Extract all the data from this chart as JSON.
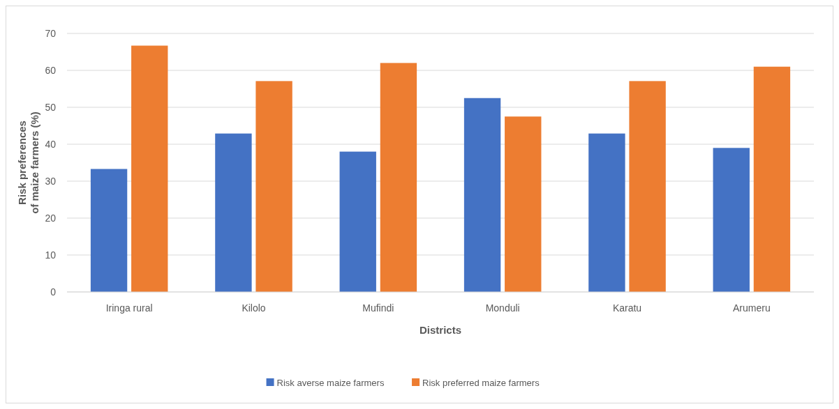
{
  "chart_data": {
    "type": "bar",
    "xlabel": "Districts",
    "ylabel": "Risk preferences\nof maize farmers  (%)",
    "categories": [
      "Iringa rural",
      "Kilolo",
      "Mufindi",
      "Monduli",
      "Karatu",
      "Arumeru"
    ],
    "series": [
      {
        "name": "Risk averse maize farmers",
        "color": "#4472c4",
        "values": [
          33.3,
          42.9,
          38,
          52.5,
          42.9,
          39
        ]
      },
      {
        "name": "Risk preferred maize farmers",
        "color": "#ed7d31",
        "values": [
          66.7,
          57.1,
          62,
          47.5,
          57.1,
          61
        ]
      }
    ],
    "ylim": [
      0,
      70
    ],
    "yticks": [
      0,
      10,
      20,
      30,
      40,
      50,
      60,
      70
    ],
    "grid": "y",
    "legend": "bottom"
  }
}
